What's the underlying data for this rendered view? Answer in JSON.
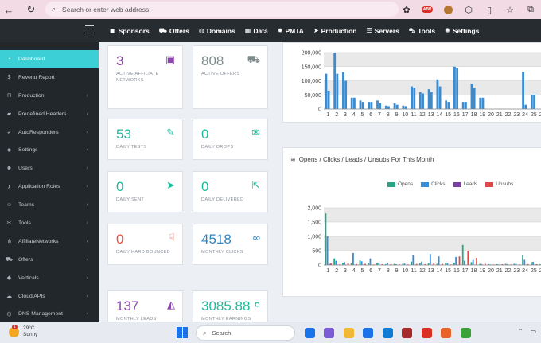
{
  "browser": {
    "address_placeholder": "Search or enter web address",
    "ext_badge": "ABP"
  },
  "topnav": {
    "items": [
      {
        "label": "Sponsors",
        "icon": "briefcase-icon"
      },
      {
        "label": "Offers",
        "icon": "cart-icon"
      },
      {
        "label": "Domains",
        "icon": "globe-icon"
      },
      {
        "label": "Data",
        "icon": "table-icon"
      },
      {
        "label": "PMTA",
        "icon": "gear-icon"
      },
      {
        "label": "Production",
        "icon": "paper-plane-icon"
      },
      {
        "label": "Servers",
        "icon": "server-icon"
      },
      {
        "label": "Tools",
        "icon": "car-icon"
      },
      {
        "label": "Settings",
        "icon": "gears-icon"
      }
    ]
  },
  "sidebar": {
    "items": [
      {
        "label": "Dashboard",
        "icon": "dashboard-icon",
        "active": true
      },
      {
        "label": "Revenu Report",
        "icon": "dollar-icon"
      },
      {
        "label": "Production",
        "icon": "inbox-icon",
        "chevron": true
      },
      {
        "label": "Predefined Headers",
        "icon": "folder-icon",
        "chevron": true
      },
      {
        "label": "AutoResponders",
        "icon": "rocket-icon",
        "chevron": true
      },
      {
        "label": "Settings",
        "icon": "gear-icon",
        "chevron": true
      },
      {
        "label": "Users",
        "icon": "users-icon",
        "chevron": true
      },
      {
        "label": "Application Roles",
        "icon": "key-icon",
        "chevron": true
      },
      {
        "label": "Teams",
        "icon": "team-icon",
        "chevron": true
      },
      {
        "label": "Tools",
        "icon": "tools-icon",
        "chevron": true
      },
      {
        "label": "AffiliateNetworks",
        "icon": "network-icon",
        "chevron": true
      },
      {
        "label": "Offers",
        "icon": "cart-icon",
        "chevron": true
      },
      {
        "label": "Verticals",
        "icon": "tag-icon",
        "chevron": true
      },
      {
        "label": "Cloud APIs",
        "icon": "cloud-icon",
        "chevron": true
      },
      {
        "label": "DNS Management",
        "icon": "dns-icon",
        "chevron": true
      }
    ]
  },
  "cards": [
    {
      "value": "3",
      "label": "ACTIVE AFFILIATE NETWORKS",
      "color": "#8e44ad",
      "icon": "briefcase-icon"
    },
    {
      "value": "808",
      "label": "ACTIVE OFFERS",
      "color": "#7f8c8d",
      "icon": "cart-icon"
    },
    {
      "value": "53",
      "label": "DAILY TESTS",
      "color": "#1abc9c",
      "icon": "wrench-icon"
    },
    {
      "value": "0",
      "label": "DAILY DROPS",
      "color": "#1abc9c",
      "icon": "envelope-icon"
    },
    {
      "value": "0",
      "label": "DAILY SENT",
      "color": "#1abc9c",
      "icon": "paper-plane-icon"
    },
    {
      "value": "0",
      "label": "DAILY DELIVERED",
      "color": "#1abc9c",
      "icon": "share-icon"
    },
    {
      "value": "0",
      "label": "DAILY HARD BOUNCED",
      "color": "#e74c3c",
      "icon": "thumbs-down-icon"
    },
    {
      "value": "4518",
      "label": "MONTHLY CLICKS",
      "color": "#2e86c1",
      "icon": "link-icon"
    },
    {
      "value": "137",
      "label": "MONTHLY LEADS",
      "color": "#8e44ad",
      "icon": "shopping-bag-icon"
    },
    {
      "value": "3085.88",
      "label": "MONTHLY EARNINGS",
      "color": "#1abc9c",
      "icon": "money-icon"
    }
  ],
  "chart_data": [
    {
      "type": "bar",
      "title": "",
      "color": "#3a8bd0",
      "categories": [
        "1",
        "2",
        "3",
        "4",
        "5",
        "6",
        "7",
        "8",
        "9",
        "10",
        "11",
        "12",
        "13",
        "14",
        "15",
        "16",
        "17",
        "18",
        "19",
        "20",
        "21",
        "22",
        "23",
        "24",
        "25",
        "26"
      ],
      "series": [
        {
          "values": [
            [
              125000,
              65000
            ],
            [
              200000,
              125000
            ],
            [
              130000,
              100000
            ],
            [
              40000,
              40000
            ],
            [
              30000,
              25000
            ],
            [
              25000,
              25000
            ],
            [
              30000,
              20000
            ],
            [
              12000,
              10000
            ],
            [
              20000,
              15000
            ],
            [
              12000,
              10000
            ],
            [
              80000,
              75000
            ],
            [
              60000,
              55000
            ],
            [
              70000,
              60000
            ],
            [
              105000,
              80000
            ],
            [
              30000,
              25000
            ],
            [
              150000,
              145000
            ],
            [
              25000,
              25000
            ],
            [
              90000,
              75000
            ],
            [
              40000,
              40000
            ],
            [
              0,
              0
            ],
            [
              0,
              0
            ],
            [
              0,
              0
            ],
            [
              0,
              0
            ],
            [
              130000,
              15000
            ],
            [
              50000,
              50000
            ],
            [
              0,
              0
            ]
          ]
        }
      ],
      "ylim": [
        0,
        200000
      ],
      "yticks": [
        "0",
        "50,000",
        "100,000",
        "150,000",
        "200,000"
      ]
    },
    {
      "type": "bar",
      "title": "Opens / Clicks / Leads / Unsubs For This Month",
      "categories": [
        "1",
        "2",
        "3",
        "4",
        "5",
        "6",
        "7",
        "8",
        "9",
        "10",
        "11",
        "12",
        "13",
        "14",
        "15",
        "16",
        "17",
        "18",
        "19",
        "20",
        "21",
        "22",
        "23",
        "24",
        "25",
        "26"
      ],
      "series": [
        {
          "name": "Opens",
          "color": "#2aa386",
          "values": [
            1800,
            230,
            80,
            60,
            160,
            60,
            60,
            30,
            40,
            40,
            120,
            70,
            60,
            40,
            80,
            80,
            700,
            100,
            40,
            30,
            30,
            40,
            40,
            330,
            100,
            30
          ]
        },
        {
          "name": "Clicks",
          "color": "#3a8bd0",
          "values": [
            1000,
            150,
            100,
            420,
            130,
            230,
            80,
            60,
            30,
            50,
            340,
            120,
            380,
            300,
            60,
            280,
            150,
            180,
            30,
            20,
            20,
            30,
            40,
            180,
            110,
            30
          ]
        },
        {
          "name": "Leads",
          "color": "#7b3fa0",
          "values": [
            40,
            10,
            10,
            10,
            10,
            10,
            10,
            5,
            5,
            5,
            10,
            10,
            10,
            10,
            5,
            10,
            10,
            10,
            5,
            5,
            5,
            5,
            5,
            10,
            10,
            5
          ]
        },
        {
          "name": "Unsubs",
          "color": "#e24646",
          "values": [
            60,
            20,
            60,
            30,
            40,
            20,
            30,
            30,
            20,
            20,
            40,
            30,
            50,
            40,
            20,
            300,
            500,
            250,
            40,
            20,
            30,
            20,
            20,
            30,
            30,
            20
          ]
        }
      ],
      "ylim": [
        0,
        2000
      ],
      "yticks": [
        "0",
        "500",
        "1,000",
        "1,500",
        "2,000"
      ]
    }
  ],
  "taskbar": {
    "temp": "29°C",
    "condition": "Sunny",
    "weather_badge": "1",
    "search_placeholder": "Search",
    "apps": [
      "#1a73e8",
      "#7b5cd6",
      "#f2b736",
      "#1a73e8",
      "#0f7bd4",
      "#a82b2b",
      "#d93025",
      "#e8632a",
      "#39a339"
    ]
  }
}
